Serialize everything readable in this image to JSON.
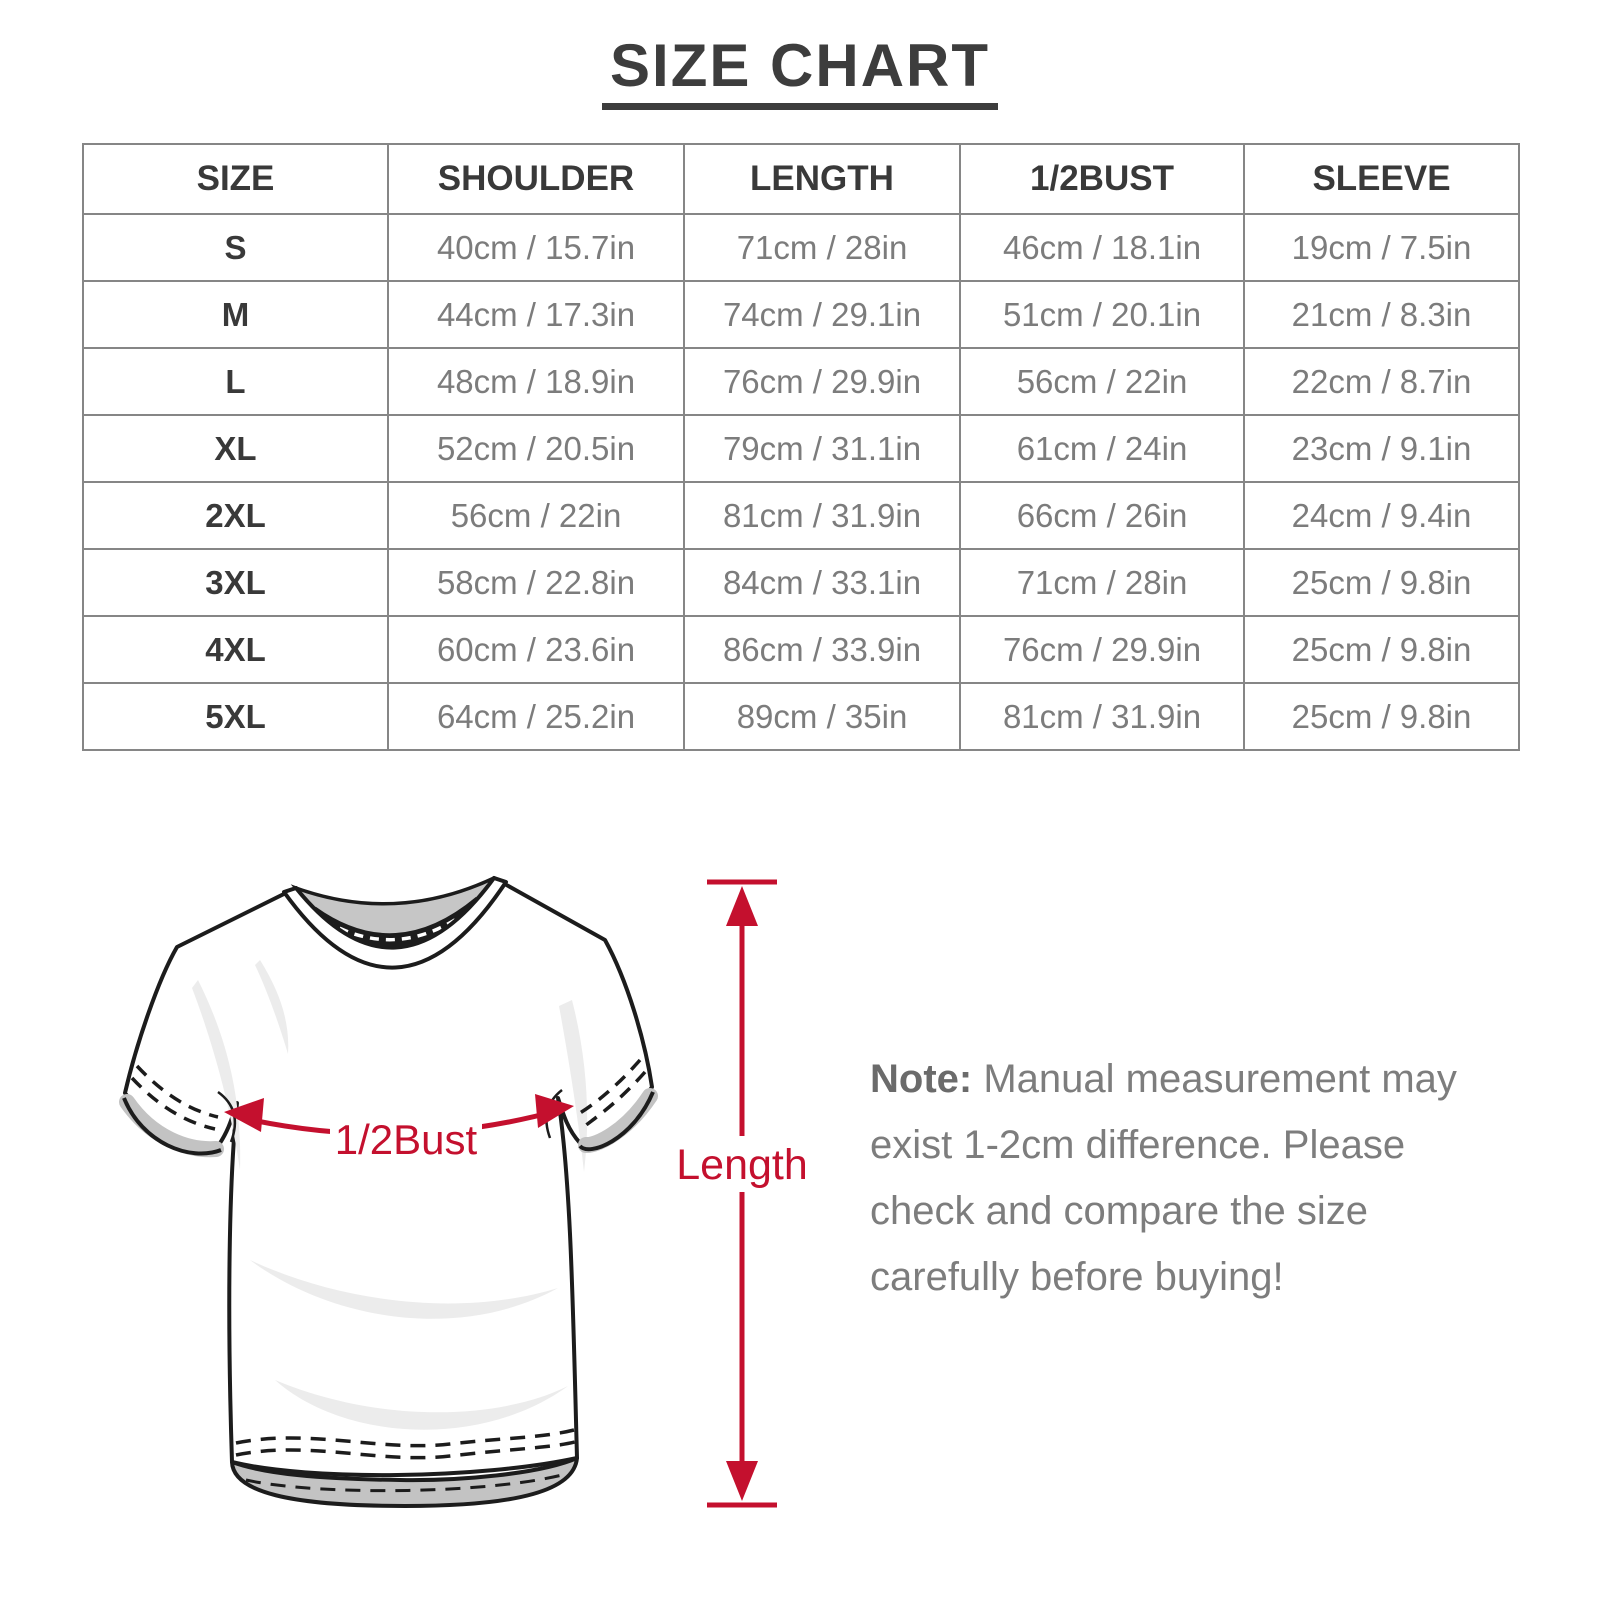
{
  "title": "SIZE CHART",
  "table": {
    "headers": [
      "SIZE",
      "SHOULDER",
      "LENGTH",
      "1/2BUST",
      "SLEEVE"
    ],
    "rows": [
      [
        "S",
        "40cm / 15.7in",
        "71cm / 28in",
        "46cm / 18.1in",
        "19cm / 7.5in"
      ],
      [
        "M",
        "44cm / 17.3in",
        "74cm / 29.1in",
        "51cm / 20.1in",
        "21cm / 8.3in"
      ],
      [
        "L",
        "48cm / 18.9in",
        "76cm / 29.9in",
        "56cm / 22in",
        "22cm / 8.7in"
      ],
      [
        "XL",
        "52cm / 20.5in",
        "79cm / 31.1in",
        "61cm / 24in",
        "23cm / 9.1in"
      ],
      [
        "2XL",
        "56cm / 22in",
        "81cm / 31.9in",
        "66cm / 26in",
        "24cm / 9.4in"
      ],
      [
        "3XL",
        "58cm / 22.8in",
        "84cm / 33.1in",
        "71cm / 28in",
        "25cm / 9.8in"
      ],
      [
        "4XL",
        "60cm / 23.6in",
        "86cm / 33.9in",
        "76cm / 29.9in",
        "25cm / 9.8in"
      ],
      [
        "5XL",
        "64cm / 25.2in",
        "89cm / 35in",
        "81cm / 31.9in",
        "25cm / 9.8in"
      ]
    ]
  },
  "diagram": {
    "bust_label": "1/2Bust",
    "length_label": "Length",
    "accent_color": "#c4102e"
  },
  "note": {
    "label": "Note:",
    "text": "Manual measurement may exist 1-2cm difference. Please check and compare the size carefully before buying!"
  },
  "colors": {
    "accent": "#c4102e",
    "title_text": "#3d3d3d",
    "table_border": "#868686",
    "muted_text": "#7c7c7c"
  }
}
